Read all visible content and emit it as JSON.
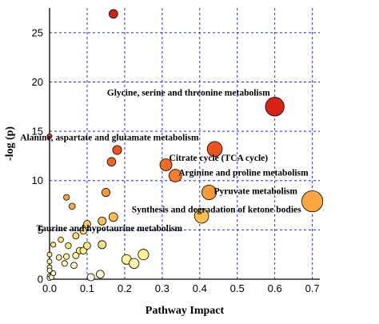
{
  "chart_data": {
    "type": "scatter",
    "title": "",
    "xlabel": "Pathway Impact",
    "ylabel": "-log (p)",
    "xlim": [
      0,
      0.72
    ],
    "ylim": [
      0,
      27.5
    ],
    "x_ticks": [
      "0.0",
      "0.1",
      "0.2",
      "0.3",
      "0.4",
      "0.5",
      "0.6",
      "0.7"
    ],
    "y_ticks": [
      "0",
      "5",
      "10",
      "15",
      "20",
      "25"
    ],
    "grid": true,
    "color_scale": "-log(p): low = pale yellow, high = deep red",
    "size_encodes": "Pathway Impact",
    "points": [
      {
        "x": 0.17,
        "y": 26.9
      },
      {
        "x": 0.6,
        "y": 17.5
      },
      {
        "x": 0.0,
        "y": 14.5
      },
      {
        "x": 0.44,
        "y": 13.2
      },
      {
        "x": 0.18,
        "y": 13.1
      },
      {
        "x": 0.165,
        "y": 11.9
      },
      {
        "x": 0.31,
        "y": 11.6
      },
      {
        "x": 0.335,
        "y": 10.5
      },
      {
        "x": 0.15,
        "y": 8.8
      },
      {
        "x": 0.425,
        "y": 8.8
      },
      {
        "x": 0.045,
        "y": 8.3
      },
      {
        "x": 0.06,
        "y": 7.4
      },
      {
        "x": 0.7,
        "y": 7.9
      },
      {
        "x": 0.405,
        "y": 6.4
      },
      {
        "x": 0.17,
        "y": 6.3
      },
      {
        "x": 0.14,
        "y": 5.9
      },
      {
        "x": 0.1,
        "y": 5.6
      },
      {
        "x": 0.03,
        "y": 4.0
      },
      {
        "x": 0.07,
        "y": 4.4
      },
      {
        "x": 0.09,
        "y": 4.9
      },
      {
        "x": 0.01,
        "y": 3.5
      },
      {
        "x": 0.05,
        "y": 3.4
      },
      {
        "x": 0.1,
        "y": 3.4
      },
      {
        "x": 0.14,
        "y": 3.5
      },
      {
        "x": 0.08,
        "y": 2.9
      },
      {
        "x": 0.09,
        "y": 2.9
      },
      {
        "x": 0.0,
        "y": 2.5
      },
      {
        "x": 0.025,
        "y": 2.2
      },
      {
        "x": 0.045,
        "y": 2.3
      },
      {
        "x": 0.07,
        "y": 2.4
      },
      {
        "x": 0.25,
        "y": 2.5
      },
      {
        "x": 0.205,
        "y": 2.0
      },
      {
        "x": 0.0,
        "y": 1.8
      },
      {
        "x": 0.04,
        "y": 1.6
      },
      {
        "x": 0.065,
        "y": 1.4
      },
      {
        "x": 0.225,
        "y": 1.6
      },
      {
        "x": 0.0,
        "y": 1.2
      },
      {
        "x": 0.0,
        "y": 0.9
      },
      {
        "x": 0.01,
        "y": 0.6
      },
      {
        "x": 0.135,
        "y": 0.5
      },
      {
        "x": 0.0,
        "y": 0.3
      },
      {
        "x": 0.005,
        "y": 0.2
      },
      {
        "x": 0.11,
        "y": 0.2
      },
      {
        "x": 0.0,
        "y": 0.1
      }
    ],
    "annotations": [
      {
        "text": "Glycine, serine and threonine metabolism",
        "x": 0.6,
        "y": 17.5
      },
      {
        "text": "Alanine, aspartate and glutamate metabolism",
        "x": 0.44,
        "y": 13.2
      },
      {
        "text": "Citrate cycle (TCA cycle)",
        "x": 0.31,
        "y": 11.6
      },
      {
        "text": "Arginine and proline metabolism",
        "x": 0.335,
        "y": 10.5
      },
      {
        "text": "Pyruvate metabolism",
        "x": 0.425,
        "y": 8.8
      },
      {
        "text": "Synthesis and degradation of ketone bodies",
        "x": 0.7,
        "y": 7.9
      },
      {
        "text": "Taurine and hypotaurine metabolism",
        "x": 0.405,
        "y": 6.4
      }
    ]
  }
}
